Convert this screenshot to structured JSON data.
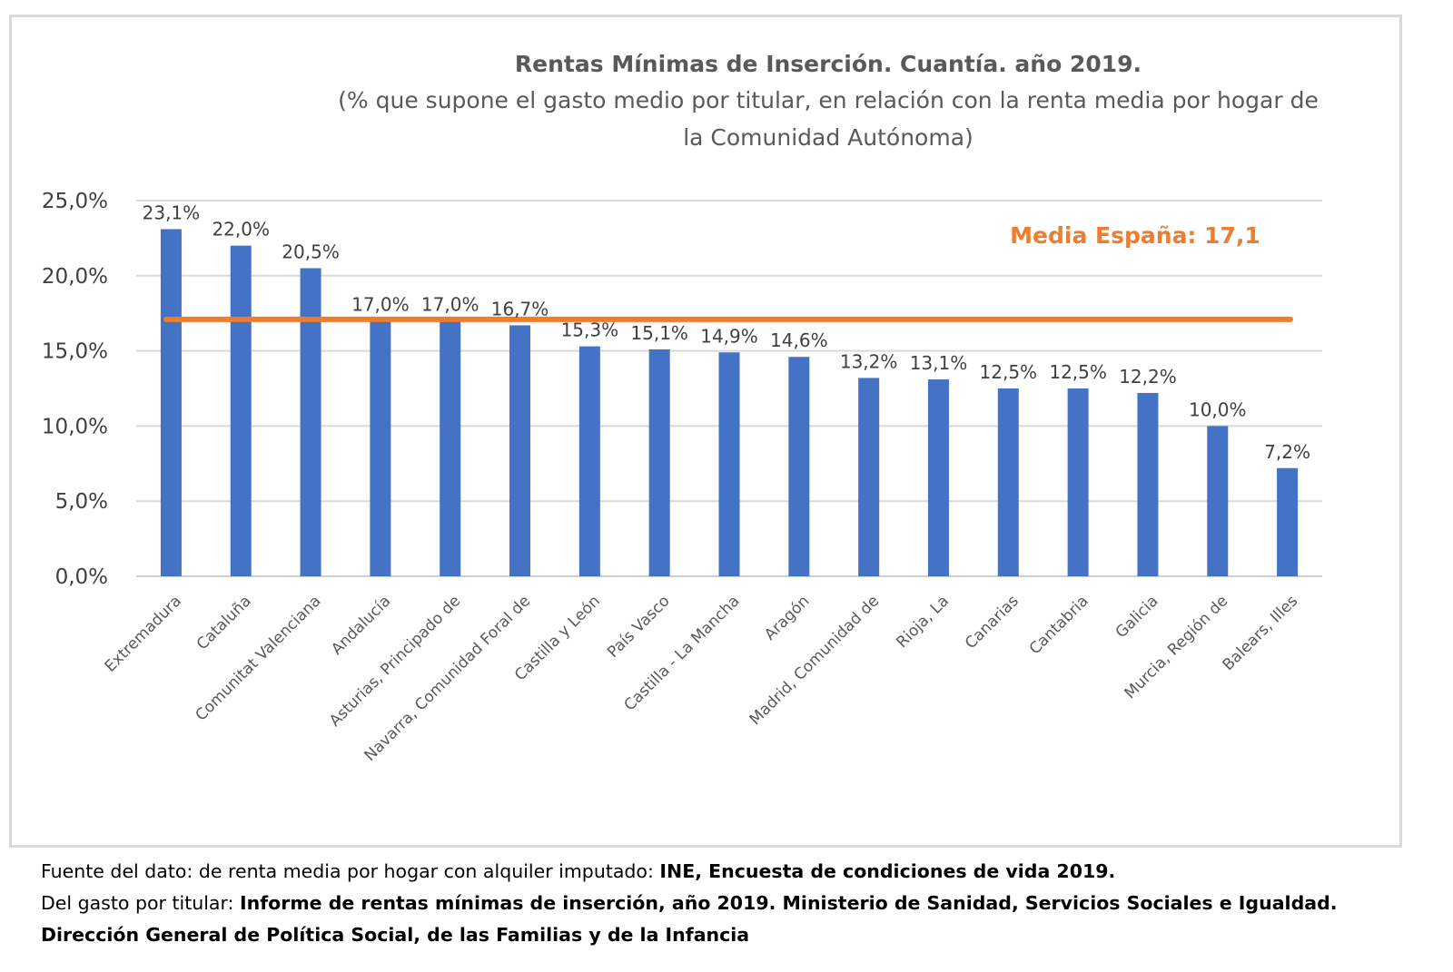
{
  "chart_data": {
    "type": "bar",
    "title": "Rentas Mínimas de Inserción. Cuantía. año 2019.",
    "subtitle_line1": "(% que supone el gasto medio por titular, en relación con la renta media por hogar de",
    "subtitle_line2": "la Comunidad Autónoma)",
    "categories": [
      "Extremadura",
      "Cataluña",
      "Comunitat Valenciana",
      "Andalucía",
      "Asturias, Principado de",
      "Navarra, Comunidad Foral de",
      "Castilla y León",
      "País Vasco",
      "Castilla - La Mancha",
      "Aragón",
      "Madrid, Comunidad de",
      "Rioja, La",
      "Canarias",
      "Cantabria",
      "Galicia",
      "Murcia, Región de",
      "Balears, Illes"
    ],
    "values": [
      23.1,
      22.0,
      20.5,
      17.0,
      17.0,
      16.7,
      15.3,
      15.1,
      14.9,
      14.6,
      13.2,
      13.1,
      12.5,
      12.5,
      12.2,
      10.0,
      7.2
    ],
    "value_labels": [
      "23,1%",
      "22,0%",
      "20,5%",
      "17,0%",
      "17,0%",
      "16,7%",
      "15,3%",
      "15,1%",
      "14,9%",
      "14,6%",
      "13,2%",
      "13,1%",
      "12,5%",
      "12,5%",
      "12,2%",
      "10,0%",
      "7,2%"
    ],
    "ylim": [
      0,
      25
    ],
    "yticks": [
      0,
      5,
      10,
      15,
      20,
      25
    ],
    "ytick_labels": [
      "0,0%",
      "5,0%",
      "10,0%",
      "15,0%",
      "20,0%",
      "25,0%"
    ],
    "reference_line": {
      "value": 17.1,
      "label": "Media España: 17,1",
      "color": "#ed7d31"
    },
    "bar_color": "#4472c4",
    "grid": true,
    "xlabel": "",
    "ylabel": ""
  },
  "source": {
    "line1_prefix": "Fuente del dato: de renta media por hogar con alquiler imputado: ",
    "line1_bold": "INE, Encuesta de condiciones de vida 2019.",
    "line2_prefix": "Del gasto por titular: ",
    "line2_bold": "Informe de rentas mínimas de inserción, año 2019. Ministerio de Sanidad, Servicios Sociales e Igualdad.",
    "line3_bold": "Dirección General de Política Social, de las Familias y de la Infancia"
  }
}
